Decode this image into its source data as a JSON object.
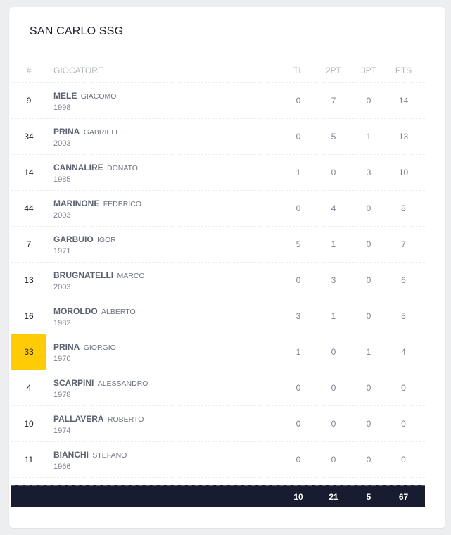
{
  "team": {
    "name": "SAN CARLO SSG"
  },
  "headers": {
    "number": "#",
    "player": "GIOCATORE",
    "tl": "TL",
    "pt2": "2PT",
    "pt3": "3PT",
    "pts": "PTS"
  },
  "players": [
    {
      "number": "9",
      "last": "MELE",
      "first": "GIACOMO",
      "year": "1998",
      "tl": "0",
      "pt2": "7",
      "pt3": "0",
      "pts": "14"
    },
    {
      "number": "34",
      "last": "PRINA",
      "first": "GABRIELE",
      "year": "2003",
      "tl": "0",
      "pt2": "5",
      "pt3": "1",
      "pts": "13"
    },
    {
      "number": "14",
      "last": "CANNALIRE",
      "first": "DONATO",
      "year": "1985",
      "tl": "1",
      "pt2": "0",
      "pt3": "3",
      "pts": "10"
    },
    {
      "number": "44",
      "last": "MARINONE",
      "first": "FEDERICO",
      "year": "2003",
      "tl": "0",
      "pt2": "4",
      "pt3": "0",
      "pts": "8"
    },
    {
      "number": "7",
      "last": "GARBUIO",
      "first": "IGOR",
      "year": "1971",
      "tl": "5",
      "pt2": "1",
      "pt3": "0",
      "pts": "7"
    },
    {
      "number": "13",
      "last": "BRUGNATELLI",
      "first": "MARCO",
      "year": "2003",
      "tl": "0",
      "pt2": "3",
      "pt3": "0",
      "pts": "6"
    },
    {
      "number": "16",
      "last": "MOROLDO",
      "first": "ALBERTO",
      "year": "1982",
      "tl": "3",
      "pt2": "1",
      "pt3": "0",
      "pts": "5"
    },
    {
      "number": "33",
      "last": "PRINA",
      "first": "GIORGIO",
      "year": "1970",
      "tl": "1",
      "pt2": "0",
      "pt3": "1",
      "pts": "4"
    },
    {
      "number": "4",
      "last": "SCARPINI",
      "first": "ALESSANDRO",
      "year": "1978",
      "tl": "0",
      "pt2": "0",
      "pt3": "0",
      "pts": "0"
    },
    {
      "number": "10",
      "last": "PALLAVERA",
      "first": "ROBERTO",
      "year": "1974",
      "tl": "0",
      "pt2": "0",
      "pt3": "0",
      "pts": "0"
    },
    {
      "number": "11",
      "last": "BIANCHI",
      "first": "STEFANO",
      "year": "1966",
      "tl": "0",
      "pt2": "0",
      "pt3": "0",
      "pts": "0"
    }
  ],
  "totals": {
    "tl": "10",
    "pt2": "21",
    "pt3": "5",
    "pts": "67"
  },
  "colors": {
    "highlight": "#ffcb05",
    "totals_bg": "#181c30"
  }
}
